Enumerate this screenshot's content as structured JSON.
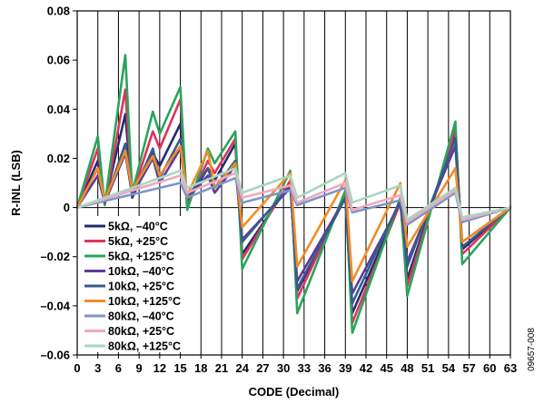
{
  "chart_data": {
    "type": "line",
    "title": "",
    "xlabel": "CODE (Decimal)",
    "ylabel": "R-INL (LSB)",
    "xlim": [
      0,
      63
    ],
    "ylim": [
      -0.06,
      0.08
    ],
    "x_ticks": [
      0,
      3,
      6,
      9,
      12,
      15,
      18,
      21,
      24,
      27,
      30,
      33,
      36,
      39,
      42,
      45,
      48,
      51,
      54,
      57,
      60,
      63
    ],
    "y_ticks": [
      -0.06,
      -0.04,
      -0.02,
      0,
      0.02,
      0.04,
      0.06,
      0.08
    ],
    "y_tick_labels": [
      "–0.06",
      "–0.04",
      "–0.02",
      "0",
      "0.02",
      "0.04",
      "0.06",
      "0.08"
    ],
    "grid": "vertical",
    "legend_placement": "bottom-left",
    "figure_id": "09657-008",
    "series": [
      {
        "name": "5kΩ, –40°C",
        "color": "#1f2f6e",
        "x": [
          0,
          3,
          4,
          7,
          8,
          11,
          12,
          15,
          16,
          19,
          20,
          23,
          24,
          31,
          32,
          39,
          40,
          47,
          48,
          55,
          56,
          63
        ],
        "y": [
          0,
          0.019,
          0.002,
          0.038,
          0.004,
          0.022,
          0.017,
          0.034,
          0.002,
          0.016,
          0.011,
          0.026,
          -0.019,
          0.01,
          -0.034,
          0.004,
          -0.043,
          0.002,
          -0.029,
          0.03,
          -0.017,
          0
        ]
      },
      {
        "name": "5kΩ, +25°C",
        "color": "#e0325e",
        "x": [
          0,
          3,
          4,
          7,
          8,
          11,
          12,
          15,
          16,
          19,
          20,
          23,
          24,
          31,
          32,
          39,
          40,
          47,
          48,
          55,
          56,
          63
        ],
        "y": [
          0,
          0.024,
          0.001,
          0.048,
          0.005,
          0.031,
          0.024,
          0.044,
          0.001,
          0.019,
          0.014,
          0.028,
          -0.021,
          0.011,
          -0.037,
          0.005,
          -0.047,
          0.002,
          -0.032,
          0.032,
          -0.019,
          0
        ]
      },
      {
        "name": "5kΩ, +125°C",
        "color": "#2aa45c",
        "x": [
          0,
          3,
          4,
          7,
          8,
          11,
          12,
          15,
          16,
          19,
          20,
          23,
          24,
          31,
          32,
          39,
          40,
          47,
          48,
          55,
          56,
          63
        ],
        "y": [
          0,
          0.029,
          0.001,
          0.062,
          0.006,
          0.039,
          0.03,
          0.049,
          -0.001,
          0.024,
          0.018,
          0.031,
          -0.025,
          0.015,
          -0.043,
          0.007,
          -0.051,
          0.004,
          -0.036,
          0.035,
          -0.023,
          0
        ]
      },
      {
        "name": "10kΩ, –40°C",
        "color": "#5b3b9a",
        "x": [
          0,
          3,
          4,
          7,
          8,
          11,
          12,
          15,
          16,
          19,
          20,
          23,
          24,
          31,
          32,
          39,
          40,
          47,
          48,
          55,
          56,
          63
        ],
        "y": [
          0,
          0.013,
          0.002,
          0.022,
          0.005,
          0.02,
          0.01,
          0.024,
          0.004,
          0.013,
          0.006,
          0.017,
          -0.013,
          0.008,
          -0.03,
          0.004,
          -0.035,
          0.002,
          -0.022,
          0.025,
          -0.014,
          0
        ]
      },
      {
        "name": "10kΩ, +25°C",
        "color": "#3a5a8c",
        "x": [
          0,
          3,
          4,
          7,
          8,
          11,
          12,
          15,
          16,
          19,
          20,
          23,
          24,
          31,
          32,
          39,
          40,
          47,
          48,
          55,
          56,
          63
        ],
        "y": [
          0,
          0.016,
          0.002,
          0.026,
          0.005,
          0.024,
          0.012,
          0.028,
          0.004,
          0.016,
          0.008,
          0.019,
          -0.014,
          0.009,
          -0.033,
          0.004,
          -0.039,
          0.003,
          -0.024,
          0.028,
          -0.016,
          0
        ]
      },
      {
        "name": "10kΩ, +125°C",
        "color": "#f28c28",
        "x": [
          0,
          3,
          4,
          7,
          8,
          11,
          12,
          15,
          16,
          19,
          20,
          23,
          24,
          31,
          32,
          39,
          40,
          47,
          48,
          55,
          56,
          63
        ],
        "y": [
          0,
          0.016,
          0.003,
          0.023,
          0.007,
          0.021,
          0.013,
          0.025,
          0.005,
          0.023,
          0.008,
          0.018,
          -0.008,
          0.014,
          -0.024,
          0.011,
          -0.03,
          0.01,
          -0.016,
          0.016,
          -0.014,
          0
        ]
      },
      {
        "name": "80kΩ, –40°C",
        "color": "#7d95c8",
        "x": [
          0,
          15,
          16,
          23,
          24,
          31,
          32,
          39,
          40,
          47,
          48,
          55,
          56,
          63
        ],
        "y": [
          0,
          0.01,
          0.004,
          0.012,
          0.002,
          0.007,
          0.001,
          0.008,
          -0.002,
          0.003,
          -0.007,
          0.006,
          -0.006,
          0
        ]
      },
      {
        "name": "80kΩ, +25°C",
        "color": "#f0a8c0",
        "x": [
          0,
          15,
          16,
          23,
          24,
          31,
          32,
          39,
          40,
          47,
          48,
          55,
          56,
          63
        ],
        "y": [
          0,
          0.013,
          0.006,
          0.014,
          0.004,
          0.009,
          0.002,
          0.01,
          -0.001,
          0.005,
          -0.006,
          0.007,
          -0.005,
          0
        ]
      },
      {
        "name": "80kΩ, +125°C",
        "color": "#a9d6c0",
        "x": [
          0,
          15,
          16,
          23,
          24,
          31,
          32,
          39,
          40,
          47,
          48,
          55,
          56,
          63
        ],
        "y": [
          0,
          0.015,
          0.008,
          0.016,
          0.006,
          0.013,
          0.004,
          0.014,
          0.002,
          0.009,
          -0.005,
          0.008,
          -0.004,
          0
        ]
      }
    ]
  }
}
